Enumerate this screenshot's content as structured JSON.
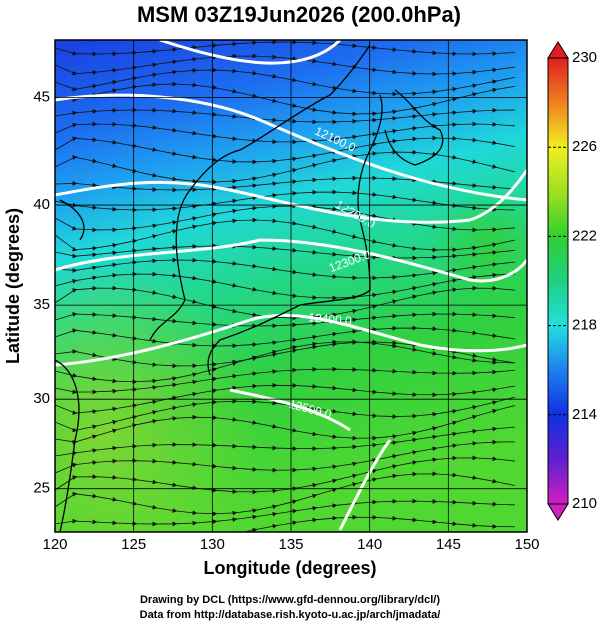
{
  "title": "MSM 03Z19Jun2026 (200.0hPa)",
  "x_axis": {
    "label": "Longitude (degrees)",
    "xlim": [
      120,
      150
    ],
    "ticks": [
      120,
      125,
      130,
      135,
      140,
      145,
      150
    ]
  },
  "y_axis": {
    "label": "Latitude (degrees)",
    "ylim": [
      22.5,
      47.5
    ],
    "ticks": [
      25,
      30,
      35,
      40,
      45
    ],
    "projection": "mercator"
  },
  "colorbar": {
    "range": [
      210,
      230
    ],
    "ticks": [
      210,
      214,
      218,
      222,
      226,
      230
    ],
    "colors": [
      "#d020c0",
      "#6020d0",
      "#1030e0",
      "#2080f0",
      "#20e0e0",
      "#20d080",
      "#30d030",
      "#a0e020",
      "#f0f020",
      "#f08020",
      "#e02020"
    ]
  },
  "contour_labels": [
    "12100.0",
    "12200.0",
    "12300.0",
    "12400.0",
    "12500.0"
  ],
  "footer": [
    "Drawing by DCL (https://www.gfd-dennou.org/library/dcl/)",
    "Data from http://database.rish.kyoto-u.ac.jp/arch/jmadata/"
  ]
}
